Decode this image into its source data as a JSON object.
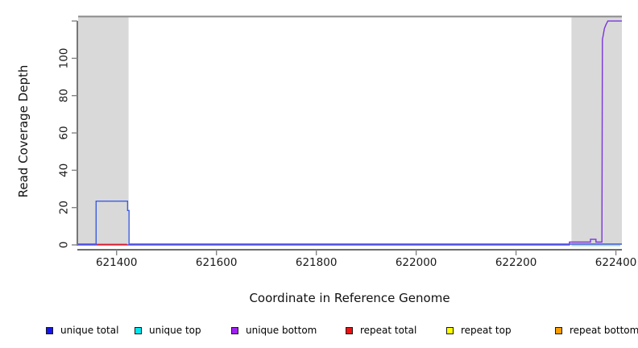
{
  "figure": {
    "kind": "read coverage depth plot"
  },
  "legend": {
    "items": [
      {
        "label": "unique total",
        "color": "#1414ee"
      },
      {
        "label": "unique top",
        "color": "#00e5ee"
      },
      {
        "label": "unique bottom",
        "color": "#a020f0"
      },
      {
        "label": "repeat total",
        "color": "#ee1111"
      },
      {
        "label": "repeat top",
        "color": "#ffff00"
      },
      {
        "label": "repeat bottom",
        "color": "#ff9d00"
      }
    ]
  },
  "chart_data": {
    "type": "line",
    "title": "",
    "xlabel": "Coordinate in Reference Genome",
    "ylabel": "Read Coverage Depth",
    "xlim": [
      621323,
      622412
    ],
    "ylim": [
      0,
      122.4
    ],
    "grid": false,
    "x_ticks": [
      621400,
      621600,
      621800,
      622000,
      622200,
      622400
    ],
    "x_tick_labels": [
      "621400",
      "621600",
      "621800",
      "622000",
      "622200",
      "622400"
    ],
    "y_ticks": [
      0,
      20,
      40,
      60,
      80,
      100,
      120
    ],
    "y_tick_labels": [
      "0",
      "20",
      "40",
      "60",
      "80",
      "100",
      ""
    ],
    "top_reference_line_y": 122.4,
    "top_reference_line_color": "#8a8a8a",
    "shaded_region_color": "#d9d9d9",
    "shaded_regions": [
      {
        "x0": 621323,
        "x1": 621424
      },
      {
        "x0": 622311,
        "x1": 622412
      }
    ],
    "series": [
      {
        "name": "unique bottom",
        "color": "#7b35dd",
        "points": [
          [
            621323,
            0
          ],
          [
            622307,
            0
          ],
          [
            622307,
            1.5
          ],
          [
            622349,
            1.5
          ],
          [
            622349,
            3
          ],
          [
            622360,
            3
          ],
          [
            622360,
            1.5
          ],
          [
            622372,
            1.5
          ],
          [
            622373,
            110
          ],
          [
            622375,
            113
          ],
          [
            622377,
            116
          ],
          [
            622380,
            118
          ],
          [
            622384,
            120
          ],
          [
            622412,
            120
          ]
        ]
      },
      {
        "name": "repeat total",
        "color": "#e02020",
        "points": [
          [
            621360,
            0.3
          ],
          [
            621421,
            0.3
          ]
        ]
      },
      {
        "name": "unlabeled green baseline",
        "color": "#8ee08e",
        "points": [
          [
            622311,
            0
          ],
          [
            622409,
            0
          ]
        ]
      },
      {
        "name": "unique total",
        "color": "#3a5de6",
        "points": [
          [
            621323,
            0
          ],
          [
            621359,
            0
          ],
          [
            621359,
            23
          ],
          [
            621422,
            23
          ],
          [
            621422,
            18
          ],
          [
            621425,
            18
          ],
          [
            621425,
            0
          ],
          [
            622412,
            0
          ]
        ]
      }
    ]
  }
}
